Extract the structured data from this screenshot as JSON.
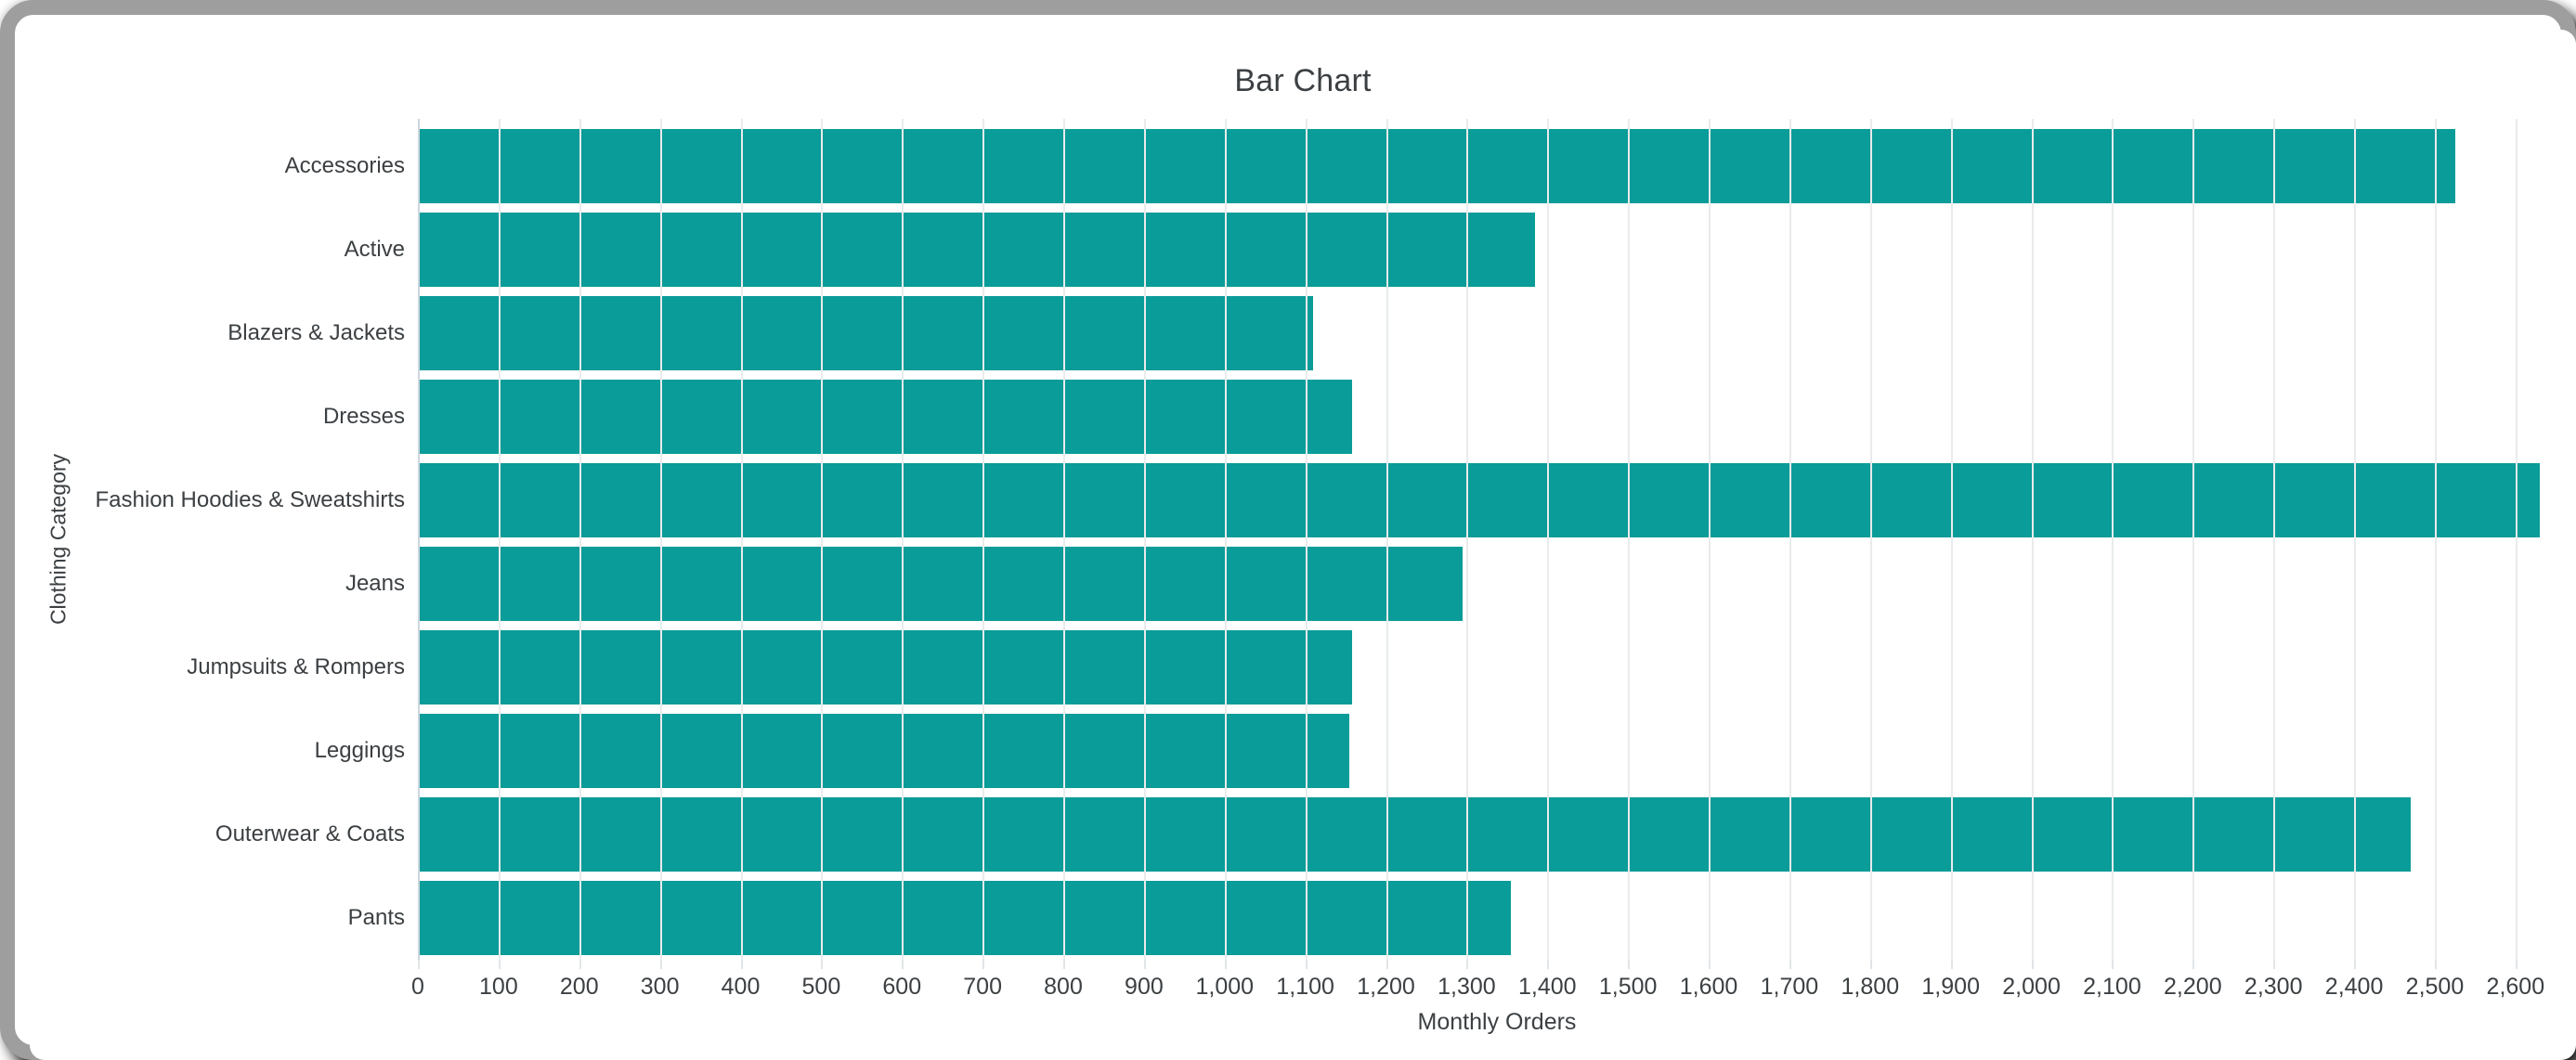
{
  "colors": {
    "bar": "#0a9c98",
    "grid": "#e9ebec",
    "zero_line": "#ccd6de",
    "text": "#3c4043",
    "frame": "#9e9e9e",
    "background": "#ffffff"
  },
  "chart_data": {
    "type": "bar",
    "orientation": "horizontal",
    "title": "Bar Chart",
    "xlabel": "Monthly Orders",
    "ylabel": "Clothing Category",
    "legend": "none",
    "grid": "vertical",
    "xlim": [
      0,
      2675
    ],
    "categories": [
      "Accessories",
      "Active",
      "Blazers & Jackets",
      "Dresses",
      "Fashion Hoodies & Sweatshirts",
      "Jeans",
      "Jumpsuits & Rompers",
      "Leggings",
      "Outerwear & Coats",
      "Pants"
    ],
    "values": [
      2525,
      1385,
      1110,
      1158,
      2630,
      1295,
      1158,
      1155,
      2470,
      1355
    ],
    "xticks": [
      {
        "value": 0,
        "label": "0"
      },
      {
        "value": 100,
        "label": "100"
      },
      {
        "value": 200,
        "label": "200"
      },
      {
        "value": 300,
        "label": "300"
      },
      {
        "value": 400,
        "label": "400"
      },
      {
        "value": 500,
        "label": "500"
      },
      {
        "value": 600,
        "label": "600"
      },
      {
        "value": 700,
        "label": "700"
      },
      {
        "value": 800,
        "label": "800"
      },
      {
        "value": 900,
        "label": "900"
      },
      {
        "value": 1000,
        "label": "1,000"
      },
      {
        "value": 1100,
        "label": "1,100"
      },
      {
        "value": 1200,
        "label": "1,200"
      },
      {
        "value": 1300,
        "label": "1,300"
      },
      {
        "value": 1400,
        "label": "1,400"
      },
      {
        "value": 1500,
        "label": "1,500"
      },
      {
        "value": 1600,
        "label": "1,600"
      },
      {
        "value": 1700,
        "label": "1,700"
      },
      {
        "value": 1800,
        "label": "1,800"
      },
      {
        "value": 1900,
        "label": "1,900"
      },
      {
        "value": 2000,
        "label": "2,000"
      },
      {
        "value": 2100,
        "label": "2,100"
      },
      {
        "value": 2200,
        "label": "2,200"
      },
      {
        "value": 2300,
        "label": "2,300"
      },
      {
        "value": 2400,
        "label": "2,400"
      },
      {
        "value": 2500,
        "label": "2,500"
      },
      {
        "value": 2600,
        "label": "2,600"
      }
    ]
  }
}
